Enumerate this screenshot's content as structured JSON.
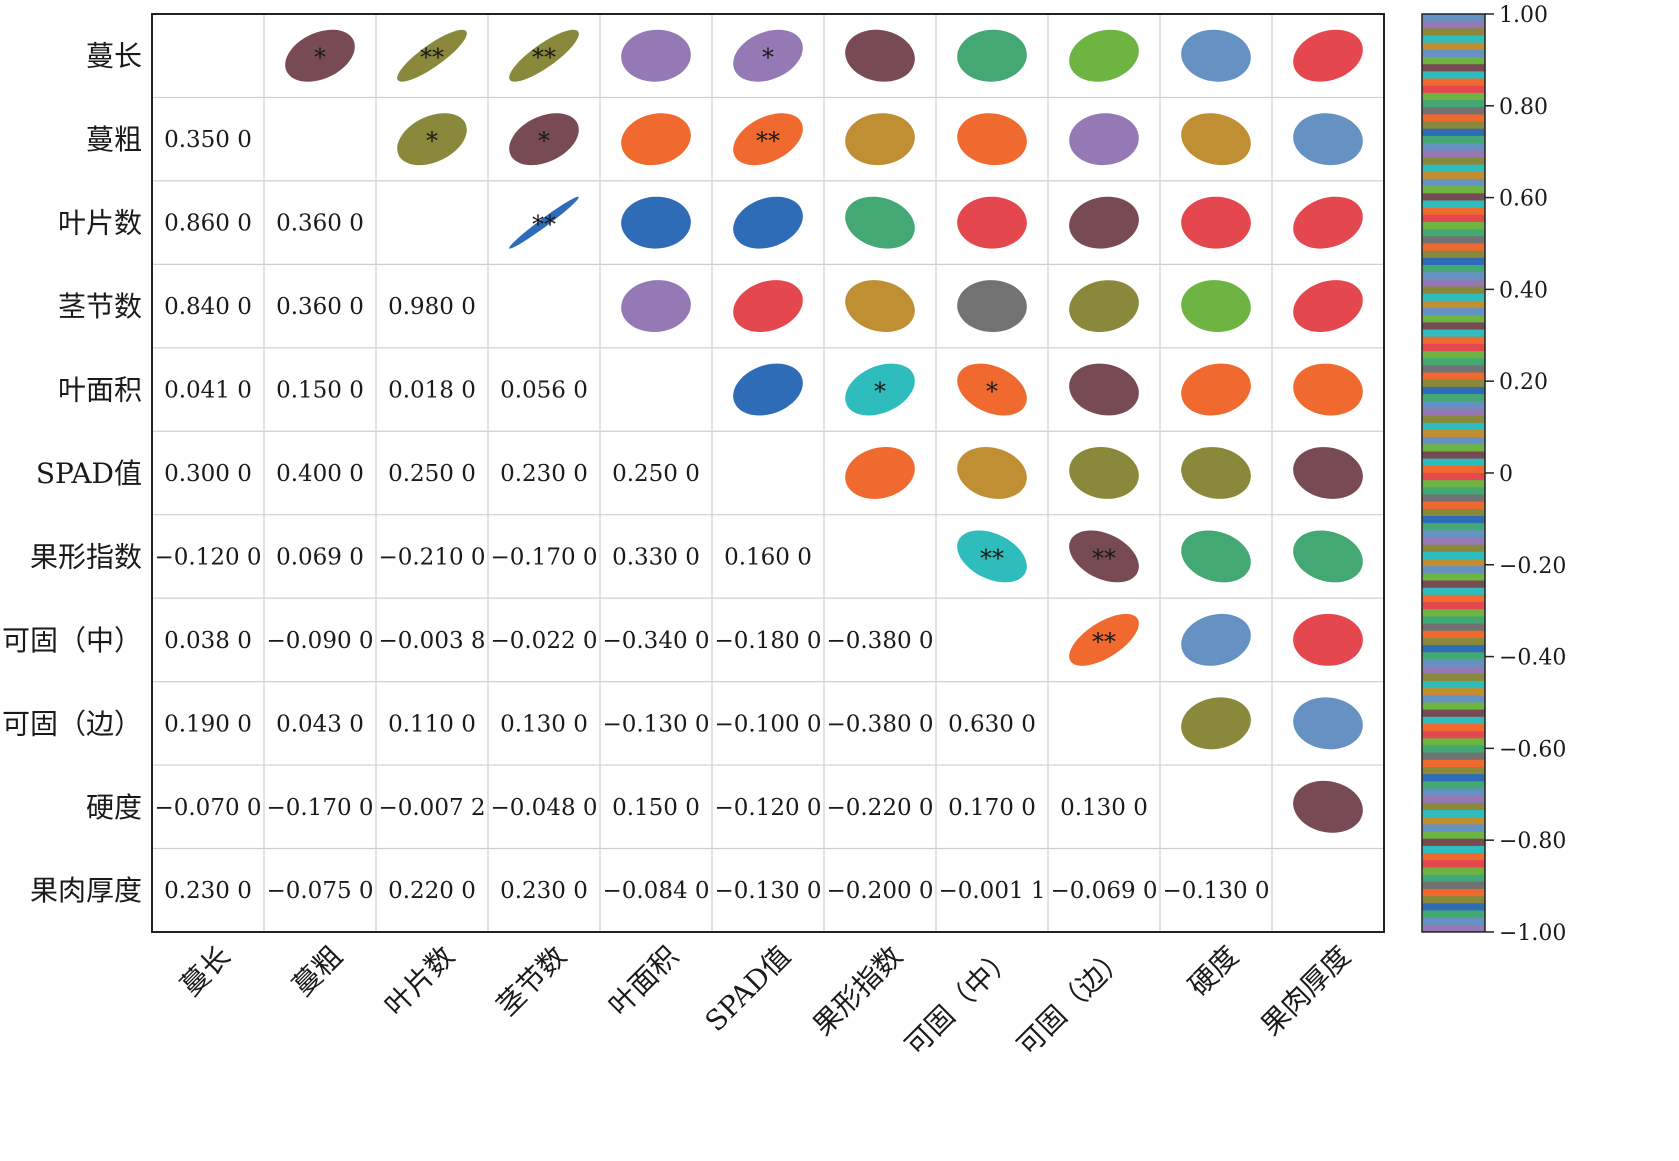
{
  "chart_data": {
    "type": "heatmap",
    "subtype": "correlation-matrix",
    "variables": [
      "蔓长",
      "蔓粗",
      "叶片数",
      "茎节数",
      "叶面积",
      "SPAD值",
      "果形指数",
      "可固（中）",
      "可固（边）",
      "硬度",
      "果肉厚度"
    ],
    "lower_values": [
      [],
      [
        "0.350 0"
      ],
      [
        "0.860 0",
        "0.360 0"
      ],
      [
        "0.840 0",
        "0.360 0",
        "0.980 0"
      ],
      [
        "0.041 0",
        "0.150 0",
        "0.018 0",
        "0.056 0"
      ],
      [
        "0.300 0",
        "0.400 0",
        "0.250 0",
        "0.230 0",
        "0.250 0"
      ],
      [
        "−0.120 0",
        "0.069 0",
        "−0.210 0",
        "−0.170 0",
        "0.330 0",
        "0.160 0"
      ],
      [
        "0.038 0",
        "−0.090 0",
        "−0.003 8",
        "−0.022 0",
        "−0.340 0",
        "−0.180 0",
        "−0.380 0"
      ],
      [
        "0.190 0",
        "0.043 0",
        "0.110 0",
        "0.130 0",
        "−0.130 0",
        "−0.100 0",
        "−0.380 0",
        "0.630 0"
      ],
      [
        "−0.070 0",
        "−0.170 0",
        "−0.007 2",
        "−0.048 0",
        "0.150 0",
        "−0.120 0",
        "−0.220 0",
        "0.170 0",
        "0.130 0"
      ],
      [
        "0.230 0",
        "−0.075 0",
        "0.220 0",
        "0.230 0",
        "−0.084 0",
        "−0.130 0",
        "−0.200 0",
        "−0.001 1",
        "−0.069 0",
        "−0.130 0"
      ]
    ],
    "upper_ellipses": [
      {
        "row": 0,
        "col": 1,
        "color": "#784b54",
        "sig": "*"
      },
      {
        "row": 0,
        "col": 2,
        "color": "#8a883b",
        "sig": "**"
      },
      {
        "row": 0,
        "col": 3,
        "color": "#8a883b",
        "sig": "**"
      },
      {
        "row": 0,
        "col": 4,
        "color": "#9479b5",
        "sig": ""
      },
      {
        "row": 0,
        "col": 5,
        "color": "#9479b5",
        "sig": "*"
      },
      {
        "row": 0,
        "col": 6,
        "color": "#784b54",
        "sig": ""
      },
      {
        "row": 0,
        "col": 7,
        "color": "#43a873",
        "sig": ""
      },
      {
        "row": 0,
        "col": 8,
        "color": "#6db442",
        "sig": ""
      },
      {
        "row": 0,
        "col": 9,
        "color": "#6592c2",
        "sig": ""
      },
      {
        "row": 0,
        "col": 10,
        "color": "#e5474f",
        "sig": ""
      },
      {
        "row": 1,
        "col": 2,
        "color": "#8a883b",
        "sig": "*"
      },
      {
        "row": 1,
        "col": 3,
        "color": "#784b54",
        "sig": "*"
      },
      {
        "row": 1,
        "col": 4,
        "color": "#f0692f",
        "sig": ""
      },
      {
        "row": 1,
        "col": 5,
        "color": "#f0692f",
        "sig": "**"
      },
      {
        "row": 1,
        "col": 6,
        "color": "#c08f33",
        "sig": ""
      },
      {
        "row": 1,
        "col": 7,
        "color": "#f0692f",
        "sig": ""
      },
      {
        "row": 1,
        "col": 8,
        "color": "#9479b5",
        "sig": ""
      },
      {
        "row": 1,
        "col": 9,
        "color": "#c08f33",
        "sig": ""
      },
      {
        "row": 1,
        "col": 10,
        "color": "#6592c2",
        "sig": ""
      },
      {
        "row": 2,
        "col": 3,
        "color": "#2f6cb8",
        "sig": "**"
      },
      {
        "row": 2,
        "col": 4,
        "color": "#2f6cb8",
        "sig": ""
      },
      {
        "row": 2,
        "col": 5,
        "color": "#2f6cb8",
        "sig": ""
      },
      {
        "row": 2,
        "col": 6,
        "color": "#43a873",
        "sig": ""
      },
      {
        "row": 2,
        "col": 7,
        "color": "#e5474f",
        "sig": ""
      },
      {
        "row": 2,
        "col": 8,
        "color": "#784b54",
        "sig": ""
      },
      {
        "row": 2,
        "col": 9,
        "color": "#e5474f",
        "sig": ""
      },
      {
        "row": 2,
        "col": 10,
        "color": "#e5474f",
        "sig": ""
      },
      {
        "row": 3,
        "col": 4,
        "color": "#9479b5",
        "sig": ""
      },
      {
        "row": 3,
        "col": 5,
        "color": "#e5474f",
        "sig": ""
      },
      {
        "row": 3,
        "col": 6,
        "color": "#c08f33",
        "sig": ""
      },
      {
        "row": 3,
        "col": 7,
        "color": "#727272",
        "sig": ""
      },
      {
        "row": 3,
        "col": 8,
        "color": "#8a883b",
        "sig": ""
      },
      {
        "row": 3,
        "col": 9,
        "color": "#6db442",
        "sig": ""
      },
      {
        "row": 3,
        "col": 10,
        "color": "#e5474f",
        "sig": ""
      },
      {
        "row": 4,
        "col": 5,
        "color": "#2f6cb8",
        "sig": ""
      },
      {
        "row": 4,
        "col": 6,
        "color": "#2fbcbc",
        "sig": "*"
      },
      {
        "row": 4,
        "col": 7,
        "color": "#f0692f",
        "sig": "*"
      },
      {
        "row": 4,
        "col": 8,
        "color": "#784b54",
        "sig": ""
      },
      {
        "row": 4,
        "col": 9,
        "color": "#f0692f",
        "sig": ""
      },
      {
        "row": 4,
        "col": 10,
        "color": "#f0692f",
        "sig": ""
      },
      {
        "row": 5,
        "col": 6,
        "color": "#f0692f",
        "sig": ""
      },
      {
        "row": 5,
        "col": 7,
        "color": "#c08f33",
        "sig": ""
      },
      {
        "row": 5,
        "col": 8,
        "color": "#8a883b",
        "sig": ""
      },
      {
        "row": 5,
        "col": 9,
        "color": "#8a883b",
        "sig": ""
      },
      {
        "row": 5,
        "col": 10,
        "color": "#784b54",
        "sig": ""
      },
      {
        "row": 6,
        "col": 7,
        "color": "#2fbcbc",
        "sig": "**"
      },
      {
        "row": 6,
        "col": 8,
        "color": "#784b54",
        "sig": "**"
      },
      {
        "row": 6,
        "col": 9,
        "color": "#43a873",
        "sig": ""
      },
      {
        "row": 6,
        "col": 10,
        "color": "#43a873",
        "sig": ""
      },
      {
        "row": 7,
        "col": 8,
        "color": "#f0692f",
        "sig": "**"
      },
      {
        "row": 7,
        "col": 9,
        "color": "#6592c2",
        "sig": ""
      },
      {
        "row": 7,
        "col": 10,
        "color": "#e5474f",
        "sig": ""
      },
      {
        "row": 8,
        "col": 9,
        "color": "#8a883b",
        "sig": ""
      },
      {
        "row": 8,
        "col": 10,
        "color": "#6592c2",
        "sig": ""
      },
      {
        "row": 9,
        "col": 10,
        "color": "#784b54",
        "sig": ""
      }
    ],
    "colorbar": {
      "range": [
        -1.0,
        1.0
      ],
      "ticks": [
        {
          "value": 1.0,
          "label": "1.00"
        },
        {
          "value": 0.8,
          "label": "0.80"
        },
        {
          "value": 0.6,
          "label": "0.60"
        },
        {
          "value": 0.4,
          "label": "0.40"
        },
        {
          "value": 0.2,
          "label": "0.20"
        },
        {
          "value": 0.0,
          "label": "0"
        },
        {
          "value": -0.2,
          "label": "−0.20"
        },
        {
          "value": -0.4,
          "label": "−0.40"
        },
        {
          "value": -0.6,
          "label": "−0.60"
        },
        {
          "value": -0.8,
          "label": "−0.80"
        },
        {
          "value": -1.0,
          "label": "−1.00"
        }
      ],
      "stripe_palette": [
        "#6592c2",
        "#e5474f",
        "#8a883b",
        "#784b54",
        "#43a873",
        "#c08f33",
        "#f0692f",
        "#9479b5",
        "#6db442",
        "#2f6cb8",
        "#2fbcbc",
        "#727272"
      ]
    }
  }
}
